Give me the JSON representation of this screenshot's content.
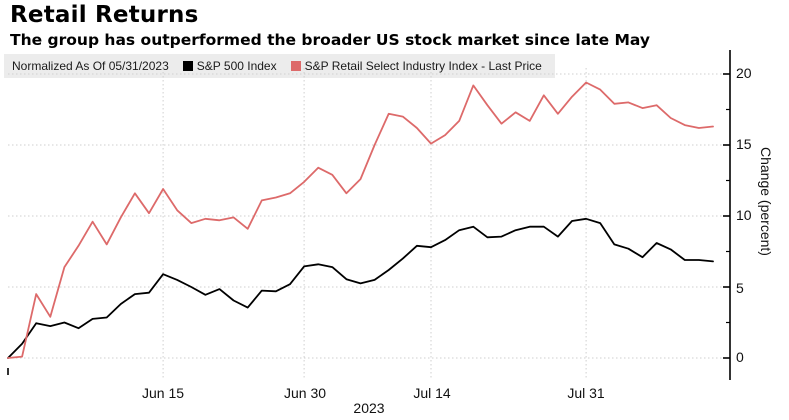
{
  "header": {
    "title": "Retail Returns",
    "subtitle": "The group has outperformed the broader US stock market since late May"
  },
  "legend": {
    "note": "Normalized As Of 05/31/2023"
  },
  "axes": {
    "y": {
      "title": "Change (percent)",
      "ticks": [
        {
          "label": "20",
          "value": 20
        },
        {
          "label": "15",
          "value": 15
        },
        {
          "label": "10",
          "value": 10
        },
        {
          "label": "5",
          "value": 5
        },
        {
          "label": "0",
          "value": 0
        }
      ],
      "minor_tick_values": [
        17.5,
        12.5,
        7.5,
        2.5
      ]
    },
    "x": {
      "ticks": [
        {
          "label": "Jun 15",
          "index": 11
        },
        {
          "label": "Jun 30",
          "index": 21
        },
        {
          "label": "Jul 14",
          "index": 30
        },
        {
          "label": "Jul 31",
          "index": 41
        }
      ],
      "year_label": "2023"
    }
  },
  "chart_data": {
    "type": "line",
    "title": "Retail Returns",
    "subtitle": "The group has outperformed the broader US stock market since late May",
    "xlabel": "2023",
    "ylabel": "Change (percent)",
    "ylim": [
      -0.7,
      20.5
    ],
    "grid": "dotted",
    "legend_position": "top",
    "x": [
      "05/31",
      "06/01",
      "06/02",
      "06/05",
      "06/06",
      "06/07",
      "06/08",
      "06/09",
      "06/12",
      "06/13",
      "06/14",
      "06/15",
      "06/16",
      "06/20",
      "06/21",
      "06/22",
      "06/23",
      "06/26",
      "06/27",
      "06/28",
      "06/29",
      "06/30",
      "07/03",
      "07/05",
      "07/06",
      "07/07",
      "07/10",
      "07/11",
      "07/12",
      "07/13",
      "07/14",
      "07/17",
      "07/18",
      "07/19",
      "07/20",
      "07/21",
      "07/24",
      "07/25",
      "07/26",
      "07/27",
      "07/28",
      "07/31",
      "08/01",
      "08/02",
      "08/03",
      "08/04",
      "08/07",
      "08/08",
      "08/09",
      "08/10",
      "08/11"
    ],
    "series": [
      {
        "id": "sp500",
        "name": "S&P 500 Index",
        "color": "#000000",
        "values": [
          0.0,
          1.0,
          2.45,
          2.25,
          2.5,
          2.1,
          2.75,
          2.85,
          3.8,
          4.5,
          4.6,
          5.9,
          5.5,
          5.0,
          4.45,
          4.85,
          4.05,
          3.55,
          4.75,
          4.7,
          5.2,
          6.45,
          6.6,
          6.4,
          5.55,
          5.25,
          5.5,
          6.2,
          7.0,
          7.9,
          7.8,
          8.3,
          9.0,
          9.25,
          8.5,
          8.55,
          9.0,
          9.25,
          9.25,
          8.55,
          9.65,
          9.8,
          9.5,
          8.0,
          7.7,
          7.1,
          8.1,
          7.65,
          6.9,
          6.9,
          6.8
        ]
      },
      {
        "id": "retail",
        "name": "S&P Retail Select Industry Index - Last Price",
        "color": "#dd6a6a",
        "values": [
          0.0,
          0.1,
          4.5,
          2.9,
          6.4,
          7.9,
          9.6,
          8.0,
          9.9,
          11.6,
          10.2,
          11.9,
          10.4,
          9.5,
          9.8,
          9.7,
          9.9,
          9.1,
          11.1,
          11.3,
          11.6,
          12.4,
          13.4,
          12.9,
          11.6,
          12.6,
          15.0,
          17.2,
          17.0,
          16.2,
          15.1,
          15.7,
          16.7,
          19.2,
          17.8,
          16.5,
          17.3,
          16.7,
          18.5,
          17.2,
          18.4,
          19.4,
          18.9,
          17.9,
          18.0,
          17.6,
          17.8,
          16.9,
          16.4,
          16.2,
          16.3
        ]
      }
    ]
  }
}
